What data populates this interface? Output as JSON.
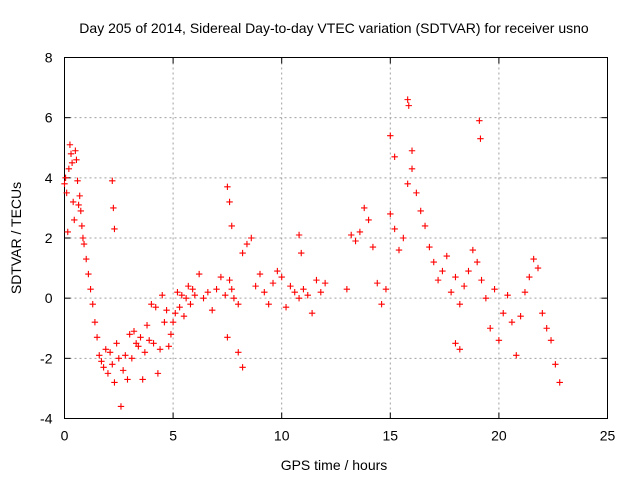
{
  "chart_data": {
    "type": "scatter",
    "title": "Day 205 of 2014, Sidereal Day-to-day VTEC variation (SDTVAR) for receiver usno",
    "xlabel": "GPS time / hours",
    "ylabel": "SDTVAR / TECUs",
    "xlim": [
      0,
      25
    ],
    "ylim": [
      -4,
      8
    ],
    "xticks": [
      0,
      5,
      10,
      15,
      20,
      25
    ],
    "yticks": [
      -4,
      -2,
      0,
      2,
      4,
      6,
      8
    ],
    "grid": true,
    "marker": "+",
    "color": "#ff0000",
    "series": [
      {
        "name": "SDTVAR",
        "x": [
          0.0,
          0.05,
          0.1,
          0.15,
          0.2,
          0.25,
          0.3,
          0.35,
          0.4,
          0.45,
          0.5,
          0.55,
          0.6,
          0.65,
          0.7,
          0.75,
          0.8,
          0.85,
          0.9,
          1.0,
          1.1,
          1.2,
          1.3,
          1.4,
          1.5,
          1.6,
          1.7,
          1.8,
          1.9,
          2.0,
          2.1,
          2.2,
          2.3,
          2.4,
          2.5,
          2.6,
          2.7,
          2.8,
          2.9,
          3.0,
          3.1,
          3.2,
          3.3,
          3.4,
          3.5,
          3.6,
          3.7,
          3.8,
          3.9,
          4.0,
          4.1,
          4.2,
          4.3,
          4.4,
          4.5,
          4.6,
          4.7,
          4.8,
          4.9,
          5.0,
          5.1,
          5.2,
          5.3,
          5.4,
          5.5,
          5.6,
          5.7,
          5.8,
          5.9,
          6.0,
          6.2,
          6.4,
          6.6,
          6.8,
          7.0,
          7.2,
          7.4,
          7.5,
          7.6,
          7.7,
          7.8,
          8.0,
          8.2,
          8.4,
          8.6,
          8.8,
          9.0,
          9.2,
          9.4,
          9.6,
          9.8,
          10.0,
          10.2,
          10.4,
          10.6,
          10.8,
          11.0,
          11.2,
          11.4,
          11.6,
          11.8,
          12.0,
          13.0,
          13.2,
          13.4,
          13.6,
          13.8,
          14.0,
          14.2,
          14.4,
          14.6,
          14.8,
          15.0,
          15.2,
          15.4,
          15.6,
          15.8,
          16.0,
          16.2,
          16.4,
          16.6,
          16.8,
          17.0,
          17.2,
          17.4,
          17.6,
          17.8,
          18.0,
          18.2,
          18.4,
          18.6,
          18.8,
          19.0,
          19.2,
          19.4,
          19.6,
          19.8,
          20.0,
          20.2,
          20.4,
          20.6,
          20.8,
          21.0,
          21.2,
          21.4,
          21.6,
          21.8,
          22.0,
          22.2,
          22.4,
          22.6,
          22.8,
          2.2,
          2.25,
          2.3,
          7.5,
          7.6,
          7.7,
          8.0,
          8.2,
          15.0,
          15.2,
          15.8,
          15.85,
          16.0,
          19.1,
          19.15,
          10.8,
          10.9,
          18.0,
          18.2
        ],
        "y": [
          3.8,
          4.0,
          3.5,
          2.2,
          4.3,
          5.1,
          4.8,
          4.5,
          3.2,
          2.6,
          4.9,
          4.6,
          3.9,
          3.1,
          3.4,
          2.9,
          2.4,
          2.0,
          1.8,
          1.3,
          0.8,
          0.3,
          -0.2,
          -0.8,
          -1.3,
          -1.9,
          -2.1,
          -2.3,
          -1.7,
          -2.5,
          -1.8,
          -2.2,
          -2.8,
          -1.5,
          -2.0,
          -3.6,
          -2.4,
          -1.9,
          -2.7,
          -1.2,
          -2.0,
          -1.1,
          -1.5,
          -1.6,
          -1.3,
          -2.7,
          -1.8,
          -0.9,
          -1.4,
          -0.2,
          -1.5,
          -0.3,
          -2.5,
          -1.7,
          0.1,
          -0.8,
          -0.4,
          -1.6,
          -1.2,
          -0.8,
          -0.5,
          0.2,
          -0.3,
          0.1,
          -0.6,
          0.0,
          0.4,
          -0.2,
          0.3,
          0.1,
          0.8,
          0.0,
          0.2,
          -0.4,
          0.3,
          0.7,
          0.1,
          -1.3,
          0.6,
          0.3,
          0.0,
          -0.2,
          1.5,
          1.8,
          2.0,
          0.4,
          0.8,
          0.2,
          -0.2,
          0.5,
          0.9,
          0.7,
          -0.3,
          0.4,
          0.2,
          0.0,
          0.3,
          0.1,
          -0.5,
          0.6,
          0.2,
          0.5,
          0.3,
          2.1,
          1.9,
          2.2,
          3.0,
          2.6,
          1.7,
          0.5,
          -0.2,
          0.3,
          2.8,
          2.3,
          1.6,
          2.0,
          3.8,
          4.3,
          3.5,
          2.9,
          2.4,
          1.7,
          1.2,
          0.6,
          0.9,
          1.4,
          0.2,
          0.7,
          -0.2,
          0.4,
          0.9,
          1.6,
          1.2,
          0.6,
          0.0,
          -1.0,
          0.3,
          -1.4,
          -0.5,
          0.1,
          -0.8,
          -1.9,
          -0.6,
          0.2,
          0.7,
          1.3,
          1.0,
          -0.5,
          -1.0,
          -1.4,
          -2.2,
          -2.8,
          3.9,
          3.0,
          2.3,
          3.7,
          3.2,
          2.4,
          -1.8,
          -2.3,
          5.4,
          4.7,
          6.6,
          6.4,
          4.9,
          5.9,
          5.3,
          2.1,
          1.5,
          -1.5,
          -1.7
        ]
      }
    ]
  }
}
